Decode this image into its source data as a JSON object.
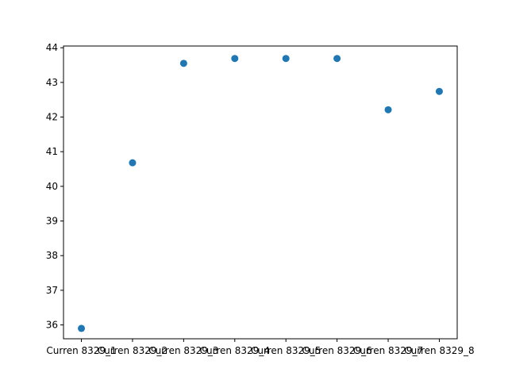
{
  "chart_data": {
    "type": "scatter",
    "title": "",
    "xlabel": "",
    "ylabel": "",
    "categories": [
      "Curren 8329_1",
      "Curren 8329_2",
      "Curren 8329_3",
      "Curren 8329_4",
      "Curren 8329_5",
      "Curren 8329_6",
      "Curren 8329_7",
      "Curren 8329_8"
    ],
    "values": [
      35.9,
      40.68,
      43.55,
      43.69,
      43.69,
      43.69,
      42.21,
      42.74
    ],
    "ylim": [
      35.6,
      44.05
    ],
    "yticks": [
      36,
      37,
      38,
      39,
      40,
      41,
      42,
      43,
      44
    ],
    "grid": false,
    "legend": "none",
    "marker_color": "#1f77b4"
  }
}
